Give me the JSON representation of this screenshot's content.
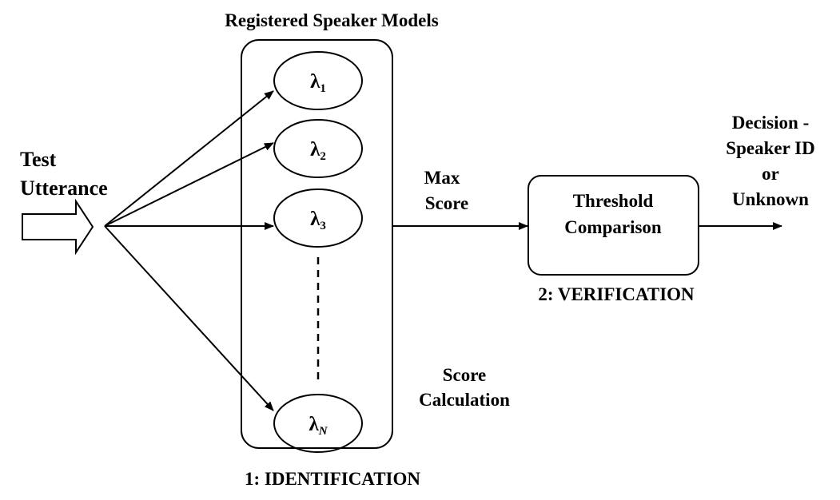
{
  "input": {
    "label_line1": "Test",
    "label_line2": "Utterance"
  },
  "models": {
    "title": "Registered Speaker Models",
    "items": [
      {
        "symbol": "λ",
        "sub": "1"
      },
      {
        "symbol": "λ",
        "sub": "2"
      },
      {
        "symbol": "λ",
        "sub": "3"
      },
      {
        "symbol": "λ",
        "sub": "N"
      }
    ]
  },
  "stage1": {
    "label": "1: IDENTIFICATION",
    "score_line1": "Score",
    "score_line2": "Calculation"
  },
  "max_score": {
    "line1": "Max",
    "line2": "Score"
  },
  "stage2": {
    "box_line1": "Threshold",
    "box_line2": "Comparison",
    "label": "2: VERIFICATION"
  },
  "output": {
    "line1": "Decision -",
    "line2": "Speaker ID",
    "line3": "or",
    "line4": "Unknown"
  }
}
